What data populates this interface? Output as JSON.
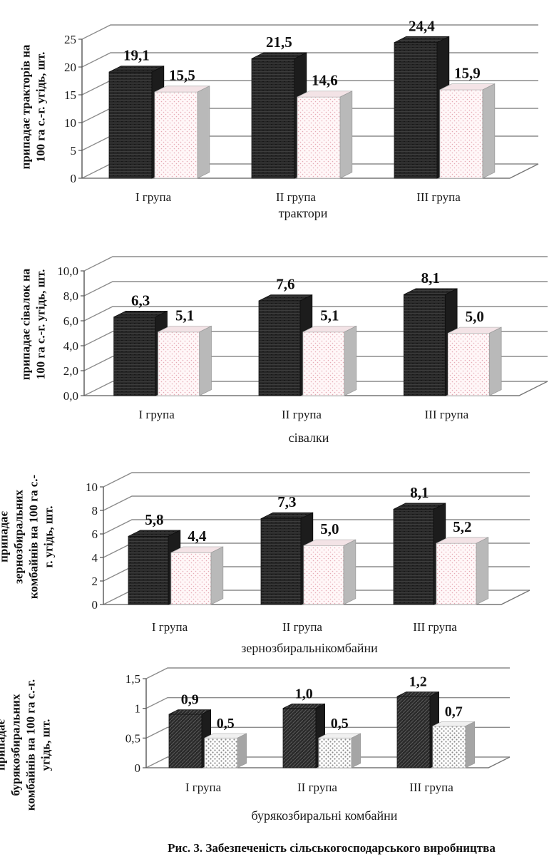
{
  "caption": "Рис. 3. Забезпеченість сільськогосподарського виробництва",
  "colors": {
    "dark": "#2b2b2b",
    "light": "#fdf0f2",
    "grid": "#9a9a9a",
    "text": "#1a1a1a"
  },
  "chart_data": [
    {
      "type": "bar",
      "categories": [
        "І група",
        "ІІ група",
        "ІІІ група"
      ],
      "series": [
        {
          "values": [
            19.1,
            21.5,
            24.4
          ]
        },
        {
          "values": [
            15.5,
            14.6,
            15.9
          ]
        }
      ],
      "value_labels": [
        [
          "19,1",
          "21,5",
          "24,4"
        ],
        [
          "15,5",
          "14,6",
          "15,9"
        ]
      ],
      "ylabel": [
        "припадає тракторів на",
        "100 га с.-г. угідь, шт."
      ],
      "xlabel": [
        "трактори"
      ],
      "ylim": [
        0,
        25
      ],
      "yticks": [
        0,
        5,
        10,
        15,
        20,
        25
      ],
      "ytick_labels": [
        "0",
        "5",
        "10",
        "15",
        "20",
        "25"
      ],
      "light_pattern": "dots-pink",
      "grid": true
    },
    {
      "type": "bar",
      "categories": [
        "І група",
        "ІІ група",
        "ІІІ група"
      ],
      "series": [
        {
          "values": [
            6.3,
            7.6,
            8.1
          ]
        },
        {
          "values": [
            5.1,
            5.1,
            5.0
          ]
        }
      ],
      "value_labels": [
        [
          "6,3",
          "7,6",
          "8,1"
        ],
        [
          "5,1",
          "5,1",
          "5,0"
        ]
      ],
      "ylabel": [
        "припадає сівалок на",
        "100 га с.-г. угідь, шт."
      ],
      "xlabel": [
        "сівалки"
      ],
      "ylim": [
        0,
        10
      ],
      "yticks": [
        0,
        2,
        4,
        6,
        8,
        10
      ],
      "ytick_labels": [
        "0,0",
        "2,0",
        "4,0",
        "6,0",
        "8,0",
        "10,0"
      ],
      "light_pattern": "dots-pink",
      "grid": true
    },
    {
      "type": "bar",
      "categories": [
        "І група",
        "ІІ група",
        "ІІІ група"
      ],
      "series": [
        {
          "values": [
            5.8,
            7.3,
            8.1
          ]
        },
        {
          "values": [
            4.4,
            5.0,
            5.2
          ]
        }
      ],
      "value_labels": [
        [
          "5,8",
          "7,3",
          "8,1"
        ],
        [
          "4,4",
          "5,0",
          "5,2"
        ]
      ],
      "ylabel": [
        "припадає",
        "зернозбиральних",
        "комбайнів на 100 га с.-",
        "г. угідь, шт."
      ],
      "xlabel": [
        "зернозбиральнікомбайни"
      ],
      "ylim": [
        0,
        10
      ],
      "yticks": [
        0,
        2,
        4,
        6,
        8,
        10
      ],
      "ytick_labels": [
        "0",
        "2",
        "4",
        "6",
        "8",
        "10"
      ],
      "light_pattern": "dots-pink",
      "grid": true
    },
    {
      "type": "bar",
      "categories": [
        "І група",
        "ІІ група",
        "ІІІ група"
      ],
      "series": [
        {
          "values": [
            0.9,
            1.0,
            1.2
          ]
        },
        {
          "values": [
            0.5,
            0.5,
            0.7
          ]
        }
      ],
      "value_labels": [
        [
          "0,9",
          "1,0",
          "1,2"
        ],
        [
          "0,5",
          "0,5",
          "0,7"
        ]
      ],
      "ylabel": [
        "припадає",
        "бурякозбиральних",
        "комбайнів на 100 га с.-г.",
        "угідь, шт."
      ],
      "xlabel": [
        "бурякозбиральні комбайни"
      ],
      "ylim": [
        0,
        1.5
      ],
      "yticks": [
        0,
        0.5,
        1,
        1.5
      ],
      "ytick_labels": [
        "0",
        "0,5",
        "1",
        "1,5"
      ],
      "light_pattern": "dots-grey",
      "grid": true
    }
  ]
}
